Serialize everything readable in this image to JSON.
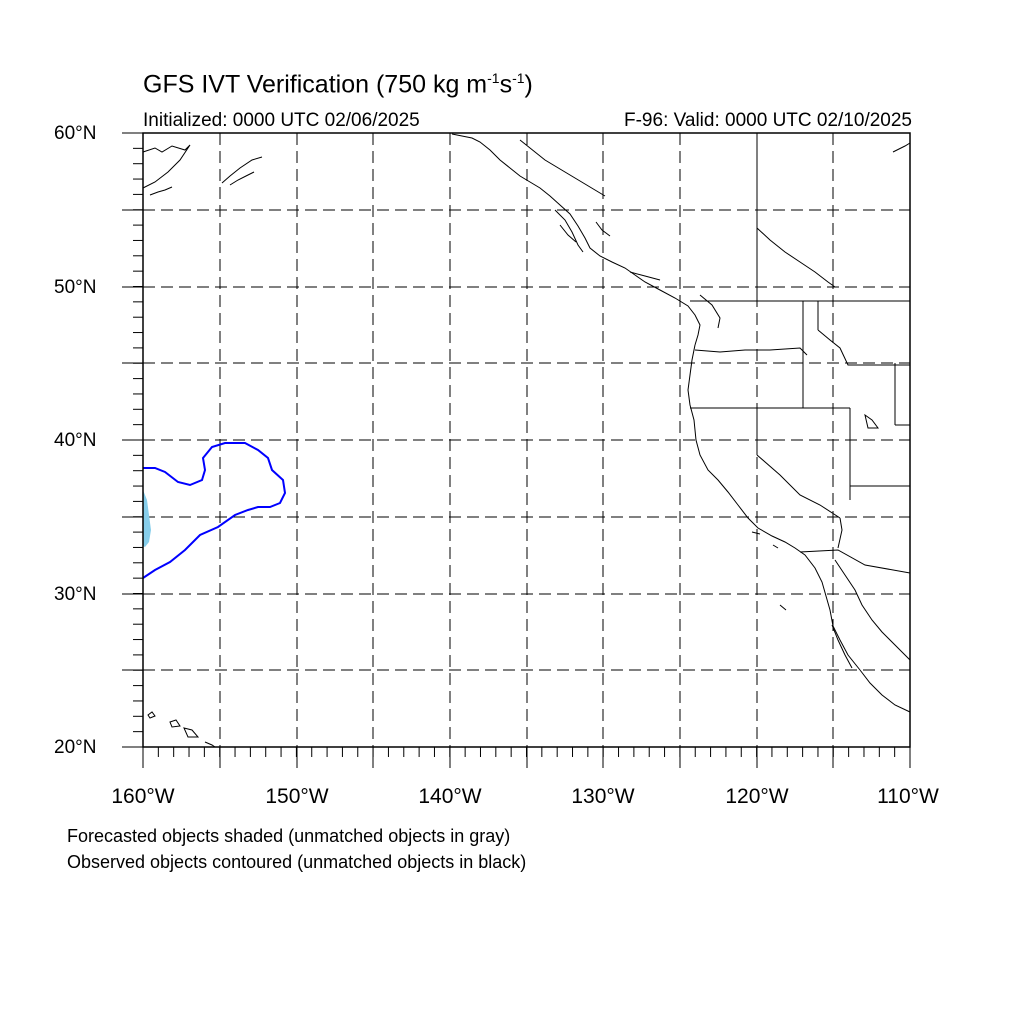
{
  "header": {
    "title_main": "GFS IVT Verification (750 kg m",
    "title_exp1": "-1",
    "title_mid": "s",
    "title_exp2": "-1",
    "title_end": ")",
    "initialized": "Initialized: 0000 UTC 02/06/2025",
    "valid": "F-96: Valid: 0000 UTC 02/10/2025"
  },
  "axes": {
    "lat_labels": [
      "60°N",
      "50°N",
      "40°N",
      "30°N",
      "20°N"
    ],
    "lon_labels": [
      "160°W",
      "150°W",
      "140°W",
      "130°W",
      "120°W",
      "110°W"
    ],
    "lat_range": [
      20,
      60
    ],
    "lon_range": [
      -160,
      -110
    ],
    "grid": "dashed every 5°"
  },
  "objects": {
    "forecast_shaded_color": "#87ceeb",
    "observed_contour_color": "#0000ff"
  },
  "footer": {
    "note1": "Forecasted objects shaded (unmatched objects in gray)",
    "note2": "Observed objects contoured (unmatched objects in black)"
  }
}
